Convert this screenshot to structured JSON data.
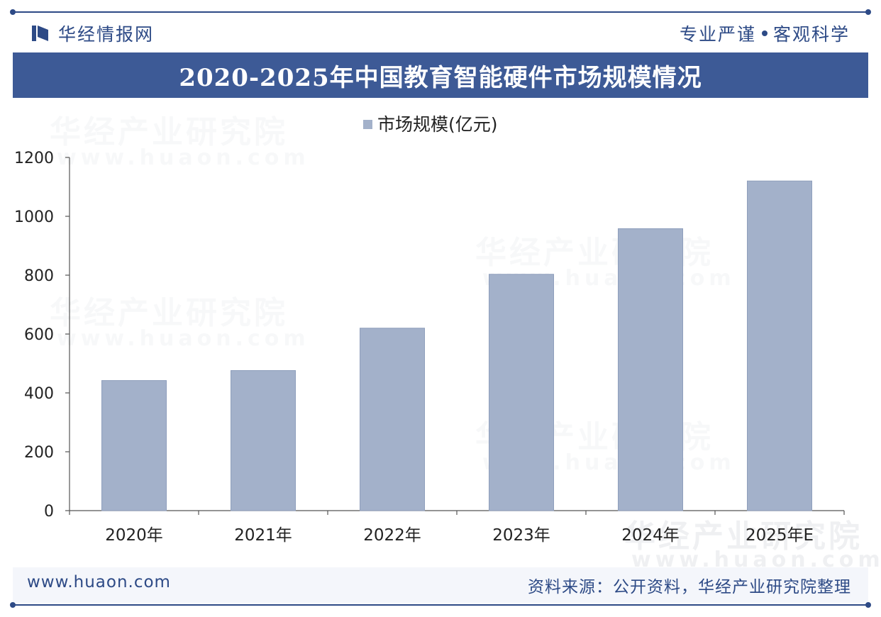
{
  "header": {
    "brand": "华经情报网",
    "slogan_left": "专业严谨",
    "slogan_right": "客观科学"
  },
  "title": "2020-2025年中国教育智能硬件市场规模情况",
  "watermark": {
    "text": "华经产业研究院",
    "url": "www.huaon.com"
  },
  "chart_data": {
    "type": "bar",
    "categories": [
      "2020年",
      "2021年",
      "2022年",
      "2023年",
      "2024年",
      "2025年E"
    ],
    "series": [
      {
        "name": "市场规模(亿元)",
        "values": [
          442,
          476,
          620,
          803,
          958,
          1120
        ]
      }
    ],
    "ylim": [
      0,
      1200
    ],
    "yticks": [
      0,
      200,
      400,
      600,
      800,
      1000,
      1200
    ],
    "legend": "top",
    "grid": false,
    "colors": {
      "bar": "#a3b1ca",
      "bar_edge": "#8f9fbc",
      "axis": "#555555"
    }
  },
  "footer": {
    "website": "www.huaon.com",
    "source": "资料来源：公开资料，华经产业研究院整理"
  }
}
